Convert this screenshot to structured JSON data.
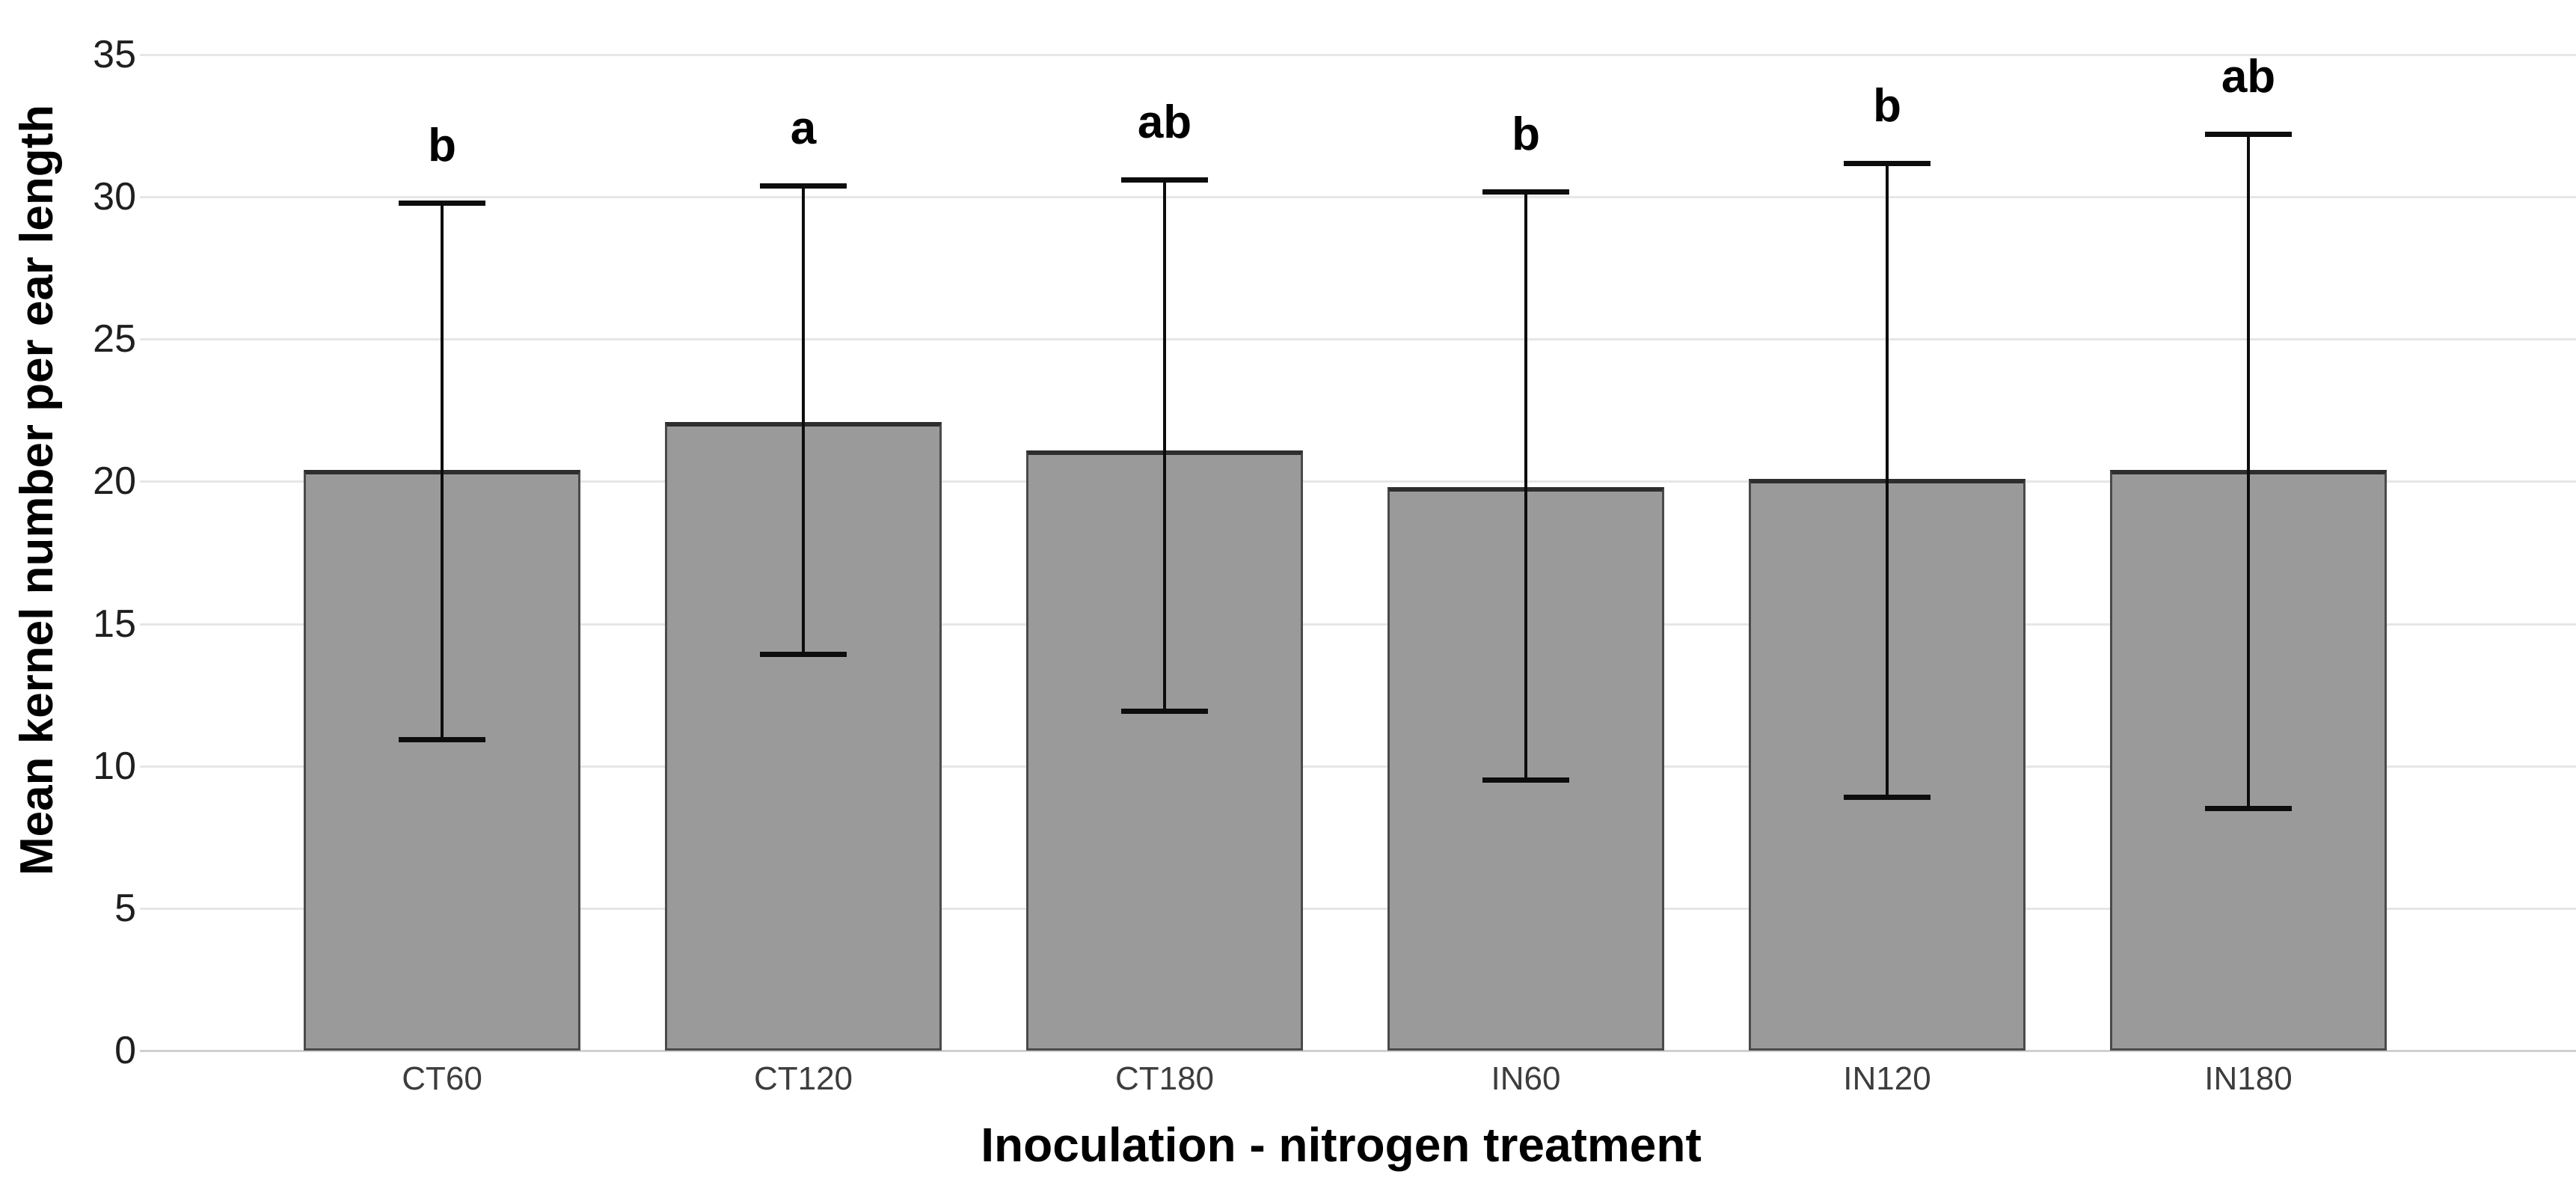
{
  "chart_data": {
    "type": "bar",
    "title": "",
    "xlabel": "Inoculation - nitrogen treatment",
    "ylabel": "Mean kernel number per ear length",
    "categories": [
      "CT60",
      "CT120",
      "CT180",
      "IN60",
      "IN120",
      "IN180"
    ],
    "values": [
      20.4,
      22.1,
      21.1,
      19.8,
      20.1,
      20.4
    ],
    "error_bars": {
      "upper": [
        29.8,
        30.4,
        30.6,
        30.2,
        31.2,
        32.2
      ],
      "lower": [
        10.9,
        13.9,
        11.9,
        9.5,
        8.9,
        8.5
      ]
    },
    "significance_letters": [
      "b",
      "a",
      "ab",
      "b",
      "b",
      "ab"
    ],
    "ylim": [
      0,
      35
    ],
    "yticks": [
      0,
      5,
      10,
      15,
      20,
      25,
      30,
      35
    ],
    "grid": "horizontal",
    "legend": "none",
    "colors": {
      "bar_fill": "#9a9a9a",
      "bar_border": "#4a4a4a",
      "bar_border_top": "#2e2e2e",
      "error_bar": "#0d0d0d",
      "gridline": "#e6e6e6",
      "baseline": "#d0d0d0",
      "tick_label": "#1f1f1f",
      "category_label": "#3d3d3d",
      "axis_title": "#000000",
      "letter": "#000000",
      "background": "#ffffff"
    }
  }
}
